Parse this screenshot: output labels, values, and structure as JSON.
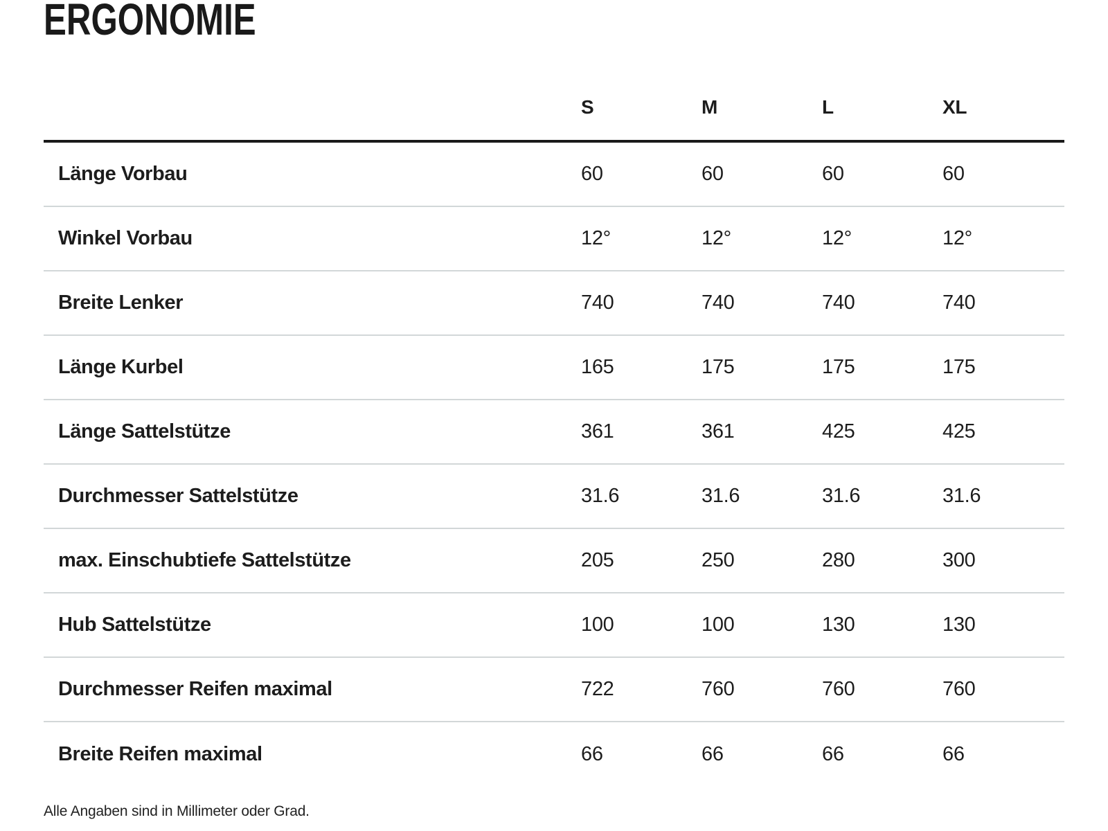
{
  "page": {
    "title": "ERGONOMIE",
    "footnote": "Alle Angaben sind in Millimeter oder Grad."
  },
  "table": {
    "columns": [
      "S",
      "M",
      "L",
      "XL"
    ],
    "rows": [
      {
        "label": "Länge Vorbau",
        "values": [
          "60",
          "60",
          "60",
          "60"
        ]
      },
      {
        "label": "Winkel Vorbau",
        "values": [
          "12°",
          "12°",
          "12°",
          "12°"
        ]
      },
      {
        "label": "Breite Lenker",
        "values": [
          "740",
          "740",
          "740",
          "740"
        ]
      },
      {
        "label": "Länge Kurbel",
        "values": [
          "165",
          "175",
          "175",
          "175"
        ]
      },
      {
        "label": "Länge Sattelstütze",
        "values": [
          "361",
          "361",
          "425",
          "425"
        ]
      },
      {
        "label": "Durchmesser Sattelstütze",
        "values": [
          "31.6",
          "31.6",
          "31.6",
          "31.6"
        ]
      },
      {
        "label": "max. Einschubtiefe Sattelstütze",
        "values": [
          "205",
          "250",
          "280",
          "300"
        ]
      },
      {
        "label": "Hub Sattelstütze",
        "values": [
          "100",
          "100",
          "130",
          "130"
        ]
      },
      {
        "label": "Durchmesser Reifen maximal",
        "values": [
          "722",
          "760",
          "760",
          "760"
        ]
      },
      {
        "label": "Breite Reifen maximal",
        "values": [
          "66",
          "66",
          "66",
          "66"
        ]
      }
    ]
  },
  "colors": {
    "text": "#1d1d1d",
    "header_rule": "#1a1a1a",
    "row_separator": "#d2d7d8"
  }
}
